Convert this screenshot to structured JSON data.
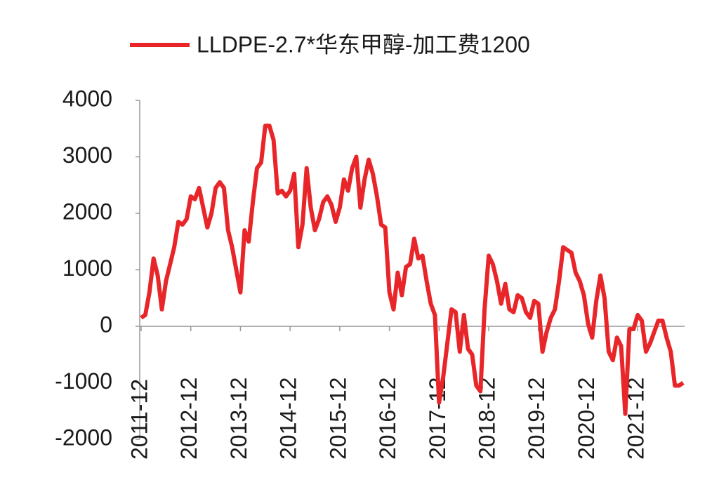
{
  "chart_data": {
    "type": "line",
    "categories": [
      "2011-12",
      null,
      null,
      null,
      null,
      null,
      null,
      null,
      null,
      null,
      null,
      null,
      "2012-12",
      null,
      null,
      null,
      null,
      null,
      null,
      null,
      null,
      null,
      null,
      null,
      "2013-12",
      null,
      null,
      null,
      null,
      null,
      null,
      null,
      null,
      null,
      null,
      null,
      "2014-12",
      null,
      null,
      null,
      null,
      null,
      null,
      null,
      null,
      null,
      null,
      null,
      "2015-12",
      null,
      null,
      null,
      null,
      null,
      null,
      null,
      null,
      null,
      null,
      null,
      "2016-12",
      null,
      null,
      null,
      null,
      null,
      null,
      null,
      null,
      null,
      null,
      null,
      "2017-12",
      null,
      null,
      null,
      null,
      null,
      null,
      null,
      null,
      null,
      null,
      null,
      "2018-12",
      null,
      null,
      null,
      null,
      null,
      null,
      null,
      null,
      null,
      null,
      null,
      "2019-12",
      null,
      null,
      null,
      null,
      null,
      null,
      null,
      null,
      null,
      null,
      null,
      "2020-12",
      null,
      null,
      null,
      null,
      null,
      null,
      null,
      null,
      null,
      null,
      null,
      "2021-12",
      null,
      null,
      null,
      null,
      null,
      null,
      null,
      null,
      null,
      null,
      null
    ],
    "series": [
      {
        "name": "LLDPE-2.7*华东甲醇-加工费1200",
        "color": "#e8262a",
        "values": [
          150,
          200,
          600,
          1200,
          900,
          300,
          800,
          1100,
          1400,
          1850,
          1800,
          1900,
          2300,
          2250,
          2450,
          2100,
          1750,
          2000,
          2450,
          2550,
          2450,
          1700,
          1400,
          1000,
          600,
          1700,
          1500,
          2200,
          2800,
          2900,
          3550,
          3550,
          3300,
          2350,
          2400,
          2300,
          2400,
          2700,
          1400,
          1800,
          2800,
          2100,
          1700,
          1900,
          2200,
          2300,
          2150,
          1850,
          2100,
          2600,
          2400,
          2800,
          3000,
          2100,
          2600,
          2950,
          2700,
          2300,
          1800,
          1750,
          600,
          300,
          950,
          550,
          1050,
          1100,
          1550,
          1200,
          1250,
          800,
          400,
          200,
          -1350,
          -900,
          -300,
          300,
          250,
          -450,
          200,
          -400,
          -500,
          -1050,
          -1150,
          300,
          1250,
          1100,
          800,
          400,
          750,
          300,
          250,
          550,
          500,
          250,
          150,
          450,
          400,
          -450,
          -100,
          150,
          300,
          800,
          1400,
          1350,
          1300,
          950,
          800,
          550,
          50,
          -200,
          450,
          900,
          500,
          -450,
          -600,
          -200,
          -350,
          -1550,
          -50,
          -50,
          200,
          100,
          -450,
          -300,
          -100,
          100,
          100,
          -200,
          -450,
          -1050,
          -1050,
          -1000
        ]
      }
    ],
    "ylim": [
      -2000,
      4000
    ],
    "yticks": [
      -2000,
      -1000,
      0,
      1000,
      2000,
      3000,
      4000
    ],
    "legend": "top"
  }
}
